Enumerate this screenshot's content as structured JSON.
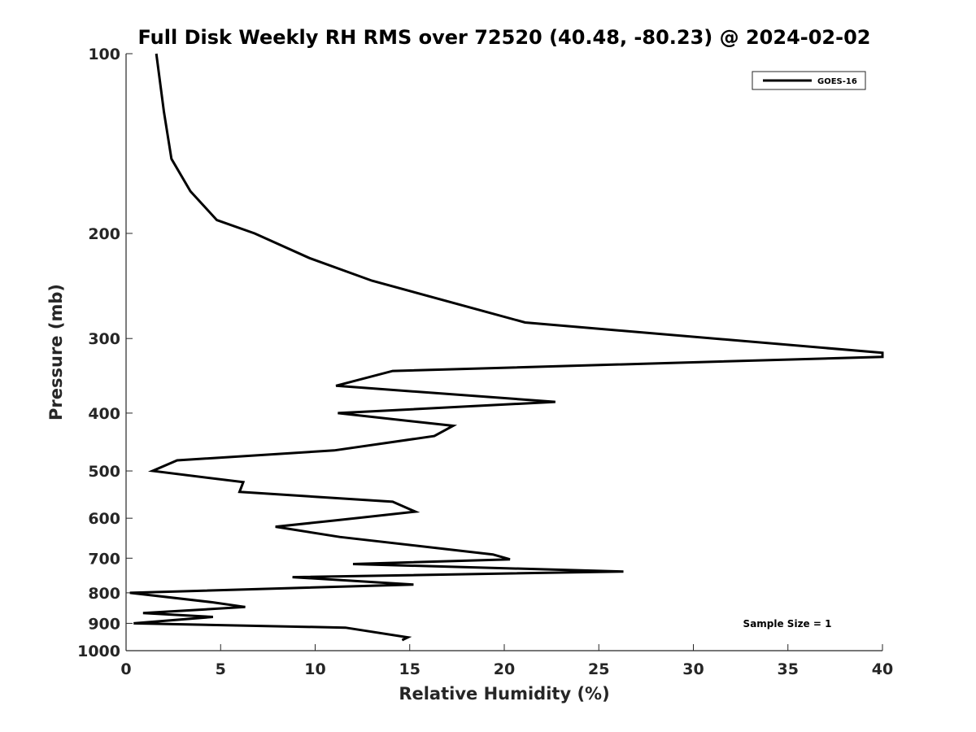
{
  "chart_data": {
    "type": "line",
    "title": "Full Disk Weekly RH RMS over 72520 (40.48, -80.23) @ 2024-02-02",
    "xlabel": "Relative Humidity (%)",
    "ylabel": "Pressure (mb)",
    "xlim": [
      0,
      40
    ],
    "ylim": [
      100,
      1000
    ],
    "y_scale": "log",
    "y_reversed": true,
    "x_ticks": [
      0,
      5,
      10,
      15,
      20,
      25,
      30,
      35,
      40
    ],
    "y_ticks": [
      100,
      200,
      300,
      400,
      500,
      600,
      700,
      800,
      900,
      1000
    ],
    "grid": false,
    "legend_position": "top-right",
    "annotation": "Sample Size = 1",
    "series": [
      {
        "name": "GOES-16",
        "color": "#000000",
        "points": [
          [
            1.6,
            100
          ],
          [
            2.0,
            125
          ],
          [
            2.4,
            150
          ],
          [
            3.4,
            170
          ],
          [
            4.8,
            190
          ],
          [
            6.8,
            200
          ],
          [
            9.7,
            220
          ],
          [
            13.0,
            240
          ],
          [
            21.1,
            282
          ],
          [
            40.0,
            317
          ],
          [
            40.0,
            322
          ],
          [
            14.1,
            340
          ],
          [
            11.1,
            360
          ],
          [
            22.7,
            383
          ],
          [
            11.2,
            400
          ],
          [
            17.3,
            420
          ],
          [
            16.3,
            437
          ],
          [
            11.0,
            462
          ],
          [
            2.7,
            480
          ],
          [
            1.4,
            500
          ],
          [
            6.2,
            522
          ],
          [
            6.0,
            542
          ],
          [
            14.1,
            563
          ],
          [
            15.3,
            585
          ],
          [
            11.1,
            605
          ],
          [
            7.9,
            620
          ],
          [
            11.3,
            645
          ],
          [
            19.4,
            690
          ],
          [
            20.3,
            703
          ],
          [
            12.0,
            716
          ],
          [
            26.3,
            737
          ],
          [
            8.8,
            753
          ],
          [
            15.2,
            775
          ],
          [
            0.2,
            800
          ],
          [
            4.6,
            830
          ],
          [
            6.3,
            845
          ],
          [
            0.9,
            865
          ],
          [
            4.6,
            878
          ],
          [
            0.4,
            900
          ],
          [
            11.6,
            915
          ],
          [
            14.9,
            950
          ],
          [
            14.6,
            960
          ]
        ]
      }
    ]
  }
}
